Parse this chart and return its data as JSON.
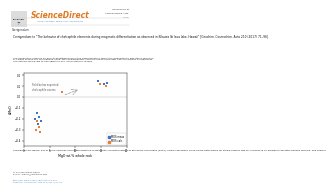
{
  "title_bar": "ARTICLE IN PRESS",
  "journal_name": "ScienceDirect",
  "corr_title": "Corrigendum to “The behavior of chalcophile elements during magmatic differentiation as observed in Kilauea Iki lava lake, Hawaii” [Geochim. Cosmochim. Acta 210 (2017) 71–96]",
  "abstract_line1": "The publication contains an error/typesetting issue in the supplementary table that inadvertently affected a selection",
  "abstract_line2": "of values used in the calculations. Here, the supplementary Table has been corrected. See Corrections & references.",
  "abstract_line3": "The authors would like to apologize for any inconvenience caused.",
  "scatter_blue_x": [
    2.2,
    2.5,
    2.8,
    3.0,
    3.3,
    14.5,
    15.5,
    16.2
  ],
  "scatter_blue_y": [
    -0.2,
    -0.15,
    -0.25,
    -0.18,
    -0.22,
    0.15,
    0.12,
    0.13
  ],
  "scatter_orange_x": [
    2.3,
    2.6,
    2.9,
    3.2,
    7.5,
    14.8,
    16.0
  ],
  "scatter_orange_y": [
    -0.3,
    -0.22,
    -0.28,
    -0.32,
    0.05,
    0.12,
    0.1
  ],
  "annotation_text": "Field below expected\nchalcophile excess",
  "xlabel": "MgO wt.% whole rock",
  "ylabel": "ΔMnO",
  "xlim": [
    0,
    20
  ],
  "ylim": [
    -0.45,
    0.22
  ],
  "yticks": [
    -0.4,
    -0.3,
    -0.2,
    -0.1,
    0.0,
    0.1,
    0.2
  ],
  "xticks": [
    0,
    5,
    10,
    15,
    20
  ],
  "legend_blue": "MOS meas",
  "legend_orange": "MOS calc",
  "bg_color": "#ffffff",
  "header_bg": "#5b7fc3",
  "header_text_color": "#ffffff",
  "blue_color": "#4472c4",
  "orange_color": "#ed7d31",
  "supplementary_text": "Supplementary Figure. EW of sulfur samples calculated using the metals ratio characterizations of Ebisuzaro and Hirano (2013). Linear regression values were determined for stable sample size for confidence on median integration bounds formula. See sample.",
  "footer_bar_color": "#1a3a6e",
  "footer_text": "0016-7037/© 2021 Elsevier Ltd. All rights reserved.  Geochim. Cosmochim. Acta 000 (2021) 71–96  |  Review of Science Data"
}
